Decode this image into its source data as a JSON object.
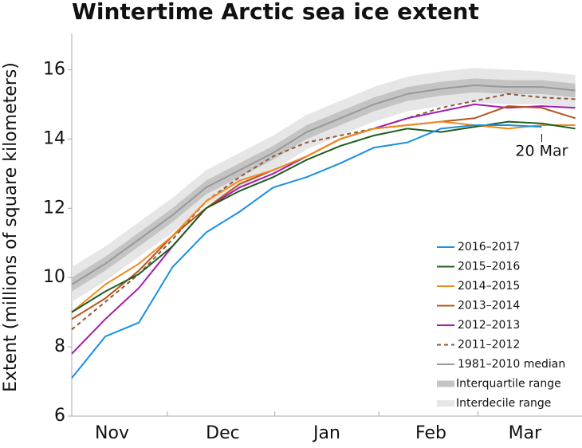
{
  "chart_data": {
    "type": "line",
    "title": "Wintertime Arctic sea ice extent",
    "y_label": "Extent (millions of square kilometers)",
    "x": [
      0,
      10,
      20,
      30,
      40,
      50,
      60,
      70,
      80,
      90,
      100,
      110,
      120,
      130,
      140,
      150
    ],
    "xlim": [
      0,
      152
    ],
    "xticks": [
      {
        "value": 12,
        "label": "Nov"
      },
      {
        "value": 45,
        "label": "Dec"
      },
      {
        "value": 76,
        "label": "Jan"
      },
      {
        "value": 107,
        "label": "Feb"
      },
      {
        "value": 135,
        "label": "Mar"
      }
    ],
    "ylim": [
      6,
      17
    ],
    "yticks": [
      6,
      8,
      10,
      12,
      14,
      16
    ],
    "bands": [
      {
        "name": "Interdecile range",
        "color": "#e6e6e6",
        "lower": [
          9.3,
          9.9,
          10.6,
          11.3,
          12.1,
          12.6,
          13.1,
          13.7,
          14.1,
          14.5,
          14.8,
          14.95,
          15.05,
          15.0,
          15.0,
          14.9
        ],
        "upper": [
          10.3,
          10.9,
          11.6,
          12.3,
          13.1,
          13.6,
          14.1,
          14.7,
          15.1,
          15.5,
          15.8,
          15.95,
          16.05,
          16.0,
          15.95,
          15.85
        ]
      },
      {
        "name": "Interquartile range",
        "color": "#c4c4c4",
        "lower": [
          9.6,
          10.2,
          10.9,
          11.6,
          12.4,
          12.9,
          13.4,
          14.0,
          14.4,
          14.8,
          15.1,
          15.25,
          15.35,
          15.3,
          15.3,
          15.2
        ],
        "upper": [
          10.0,
          10.6,
          11.3,
          12.0,
          12.8,
          13.3,
          13.8,
          14.4,
          14.8,
          15.2,
          15.5,
          15.65,
          15.75,
          15.7,
          15.7,
          15.6
        ]
      }
    ],
    "series": [
      {
        "name": "2016–2017",
        "color": "#1b8fe0",
        "values": [
          7.1,
          8.3,
          8.7,
          10.3,
          11.3,
          11.9,
          12.6,
          12.9,
          13.3,
          13.75,
          13.9,
          14.3,
          14.4,
          14.4,
          14.35,
          null
        ]
      },
      {
        "name": "2015–2016",
        "color": "#1d5e1d",
        "values": [
          9.0,
          9.6,
          10.1,
          10.9,
          12.0,
          12.5,
          12.9,
          13.4,
          13.8,
          14.1,
          14.3,
          14.2,
          14.35,
          14.5,
          14.45,
          14.3
        ]
      },
      {
        "name": "2014–2015",
        "color": "#f08a1c",
        "values": [
          9.0,
          9.8,
          10.4,
          11.2,
          12.2,
          12.8,
          13.1,
          13.5,
          14.0,
          14.3,
          14.4,
          14.5,
          14.4,
          14.3,
          14.4,
          14.4
        ]
      },
      {
        "name": "2013–2014",
        "color": "#b5541c",
        "values": [
          8.8,
          9.4,
          10.2,
          11.2,
          12.0,
          12.7,
          13.1,
          13.5,
          14.0,
          14.3,
          14.4,
          14.5,
          14.6,
          14.95,
          14.9,
          14.6
        ]
      },
      {
        "name": "2012–2013",
        "color": "#a21caf",
        "values": [
          7.8,
          8.8,
          9.7,
          10.9,
          12.0,
          12.6,
          13.0,
          13.5,
          14.0,
          14.3,
          14.6,
          14.8,
          15.0,
          14.9,
          14.95,
          14.9
        ]
      },
      {
        "name": "2011–2012",
        "color": "#8b5a3c",
        "dashed": true,
        "values": [
          8.5,
          9.3,
          10.1,
          11.1,
          12.2,
          12.9,
          13.5,
          13.9,
          14.1,
          14.3,
          14.6,
          14.9,
          15.1,
          15.3,
          15.2,
          15.15
        ]
      },
      {
        "name": "1981–2010 median",
        "color": "#999999",
        "values": [
          9.8,
          10.4,
          11.1,
          11.8,
          12.6,
          13.1,
          13.6,
          14.2,
          14.6,
          15.0,
          15.3,
          15.45,
          15.55,
          15.5,
          15.5,
          15.4
        ]
      }
    ],
    "annotations": [
      {
        "text": "20 Mar",
        "x": 140
      }
    ]
  }
}
